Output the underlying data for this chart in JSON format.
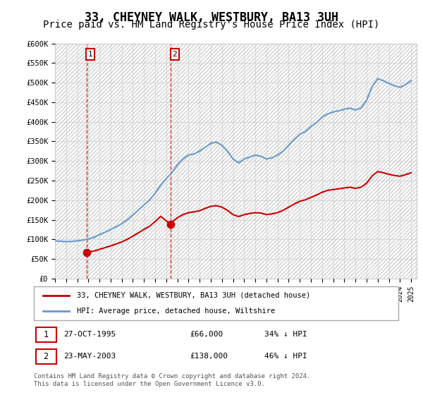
{
  "title": "33, CHEYNEY WALK, WESTBURY, BA13 3UH",
  "subtitle": "Price paid vs. HM Land Registry's House Price Index (HPI)",
  "ylim": [
    0,
    600000
  ],
  "yticks": [
    0,
    50000,
    100000,
    150000,
    200000,
    250000,
    300000,
    350000,
    400000,
    450000,
    500000,
    550000,
    600000
  ],
  "ytick_labels": [
    "£0",
    "£50K",
    "£100K",
    "£150K",
    "£200K",
    "£250K",
    "£300K",
    "£350K",
    "£400K",
    "£450K",
    "£500K",
    "£550K",
    "£600K"
  ],
  "hpi_color": "#6699cc",
  "price_color": "#cc0000",
  "sale1_year": 1995.82,
  "sale1_price": 66000,
  "sale2_year": 2003.39,
  "sale2_price": 138000,
  "sale1_label": "1",
  "sale2_label": "2",
  "legend_label_red": "33, CHEYNEY WALK, WESTBURY, BA13 3UH (detached house)",
  "legend_label_blue": "HPI: Average price, detached house, Wiltshire",
  "footer": "Contains HM Land Registry data © Crown copyright and database right 2024.\nThis data is licensed under the Open Government Licence v3.0.",
  "title_fontsize": 12,
  "subtitle_fontsize": 10,
  "years_hpi": [
    1993.0,
    1993.5,
    1994.0,
    1994.5,
    1995.0,
    1995.5,
    1996.0,
    1996.5,
    1997.0,
    1997.5,
    1998.0,
    1998.5,
    1999.0,
    1999.5,
    2000.0,
    2000.5,
    2001.0,
    2001.5,
    2002.0,
    2002.5,
    2003.0,
    2003.5,
    2004.0,
    2004.5,
    2005.0,
    2005.5,
    2006.0,
    2006.5,
    2007.0,
    2007.5,
    2008.0,
    2008.5,
    2009.0,
    2009.5,
    2010.0,
    2010.5,
    2011.0,
    2011.5,
    2012.0,
    2012.5,
    2013.0,
    2013.5,
    2014.0,
    2014.5,
    2015.0,
    2015.5,
    2016.0,
    2016.5,
    2017.0,
    2017.5,
    2018.0,
    2018.5,
    2019.0,
    2019.5,
    2020.0,
    2020.5,
    2021.0,
    2021.5,
    2022.0,
    2022.5,
    2023.0,
    2023.5,
    2024.0,
    2024.5,
    2025.0
  ],
  "hpi_values": [
    96000,
    95000,
    94000,
    94500,
    96000,
    98000,
    101000,
    105000,
    112000,
    118000,
    125000,
    132000,
    140000,
    150000,
    162000,
    175000,
    188000,
    200000,
    218000,
    238000,
    255000,
    270000,
    290000,
    305000,
    315000,
    318000,
    325000,
    335000,
    345000,
    348000,
    340000,
    325000,
    305000,
    295000,
    305000,
    310000,
    315000,
    312000,
    305000,
    308000,
    315000,
    325000,
    340000,
    355000,
    368000,
    375000,
    388000,
    398000,
    412000,
    420000,
    425000,
    428000,
    432000,
    435000,
    430000,
    435000,
    455000,
    490000,
    510000,
    505000,
    498000,
    492000,
    488000,
    495000,
    505000
  ],
  "years_prop": [
    1995.82,
    1996.0,
    1996.5,
    1997.0,
    1997.5,
    1998.0,
    1998.5,
    1999.0,
    1999.5,
    2000.0,
    2000.5,
    2001.0,
    2001.5,
    2002.0,
    2002.5,
    2003.39,
    2003.5,
    2004.0,
    2004.5,
    2005.0,
    2005.5,
    2006.0,
    2006.5,
    2007.0,
    2007.5,
    2008.0,
    2008.5,
    2009.0,
    2009.5,
    2010.0,
    2010.5,
    2011.0,
    2011.5,
    2012.0,
    2012.5,
    2013.0,
    2013.5,
    2014.0,
    2014.5,
    2015.0,
    2015.5,
    2016.0,
    2016.5,
    2017.0,
    2017.5,
    2018.0,
    2018.5,
    2019.0,
    2019.5,
    2020.0,
    2020.5,
    2021.0,
    2021.5,
    2022.0,
    2022.5,
    2023.0,
    2023.5,
    2024.0,
    2024.5,
    2025.0
  ],
  "prop_values": [
    66000,
    67800,
    70000,
    74400,
    78700,
    83300,
    88000,
    93300,
    100000,
    108000,
    116700,
    125300,
    133300,
    145300,
    158700,
    138000,
    144000,
    155000,
    163000,
    168000,
    170000,
    173000,
    179000,
    184000,
    186000,
    182000,
    174000,
    163000,
    158000,
    163000,
    166000,
    168000,
    167000,
    163000,
    165000,
    168000,
    174000,
    182000,
    190000,
    197000,
    201000,
    207000,
    213000,
    220000,
    225000,
    227000,
    229000,
    231000,
    233000,
    230000,
    233000,
    243000,
    262000,
    273000,
    270000,
    266000,
    263000,
    261000,
    265000,
    270000
  ]
}
